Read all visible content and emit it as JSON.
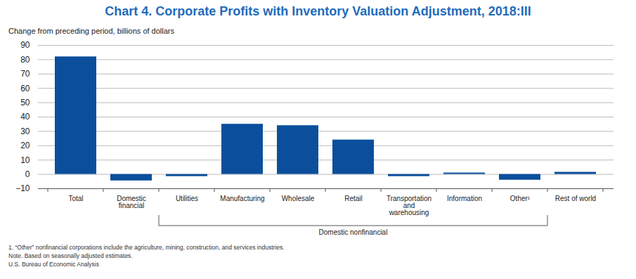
{
  "chart_data": {
    "type": "bar",
    "title": "Chart 4. Corporate Profits with Inventory Valuation Adjustment, 2018:III",
    "subtitle": "Change from preceding period, billions of dollars",
    "categories": [
      "Total",
      "Domestic financial",
      "Utilities",
      "Manufacturing",
      "Wholesale",
      "Retail",
      "Transportation and warehousing",
      "Information",
      "Other¹",
      "Rest of world"
    ],
    "values": [
      82,
      -4.5,
      -1.5,
      35,
      34,
      24,
      -1.5,
      1,
      -4,
      1.5
    ],
    "color": "#0b4f9c",
    "ylim": [
      -10,
      90
    ],
    "yticks": [
      -10,
      0,
      10,
      20,
      30,
      40,
      50,
      60,
      70,
      80,
      90
    ],
    "grid": true,
    "annotations": [
      {
        "text": "Domestic nonfinancial",
        "from": "Utilities",
        "to": "Other¹"
      }
    ],
    "notes": [
      "1. “Other” nonfinancial corporations include the agriculture, mining, construction, and services industries.",
      "Note. Based on seasonally adjusted estimates.",
      "U.S. Bureau of Economic Analysis"
    ]
  }
}
